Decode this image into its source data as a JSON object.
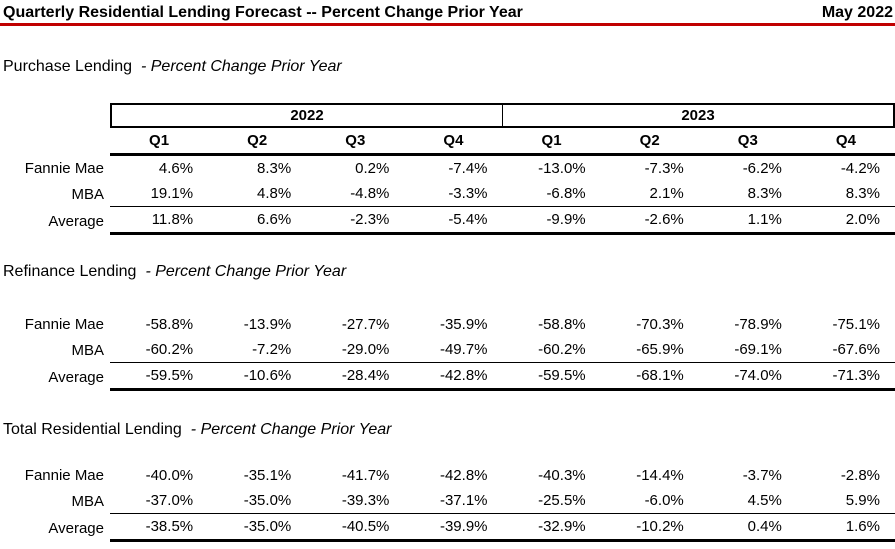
{
  "header": {
    "title": "Quarterly Residential Lending Forecast -- Percent Change Prior Year",
    "date": "May 2022"
  },
  "colors": {
    "accent": "#C00000",
    "text": "#000000",
    "background": "#FFFFFF"
  },
  "table": {
    "year_groups": [
      "2022",
      "2023"
    ],
    "quarter_headers": [
      "Q1",
      "Q2",
      "Q3",
      "Q4",
      "Q1",
      "Q2",
      "Q3",
      "Q4"
    ]
  },
  "sections": [
    {
      "name": "Purchase Lending",
      "subtitle": "- Percent Change Prior Year",
      "rows": [
        {
          "label": "Fannie Mae",
          "values": [
            "4.6%",
            "8.3%",
            "0.2%",
            "-7.4%",
            "-13.0%",
            "-7.3%",
            "-6.2%",
            "-4.2%"
          ]
        },
        {
          "label": "MBA",
          "values": [
            "19.1%",
            "4.8%",
            "-4.8%",
            "-3.3%",
            "-6.8%",
            "2.1%",
            "8.3%",
            "8.3%"
          ]
        },
        {
          "label": "Average",
          "values": [
            "11.8%",
            "6.6%",
            "-2.3%",
            "-5.4%",
            "-9.9%",
            "-2.6%",
            "1.1%",
            "2.0%"
          ]
        }
      ]
    },
    {
      "name": "Refinance Lending",
      "subtitle": "- Percent Change Prior Year",
      "rows": [
        {
          "label": "Fannie Mae",
          "values": [
            "-58.8%",
            "-13.9%",
            "-27.7%",
            "-35.9%",
            "-58.8%",
            "-70.3%",
            "-78.9%",
            "-75.1%"
          ]
        },
        {
          "label": "MBA",
          "values": [
            "-60.2%",
            "-7.2%",
            "-29.0%",
            "-49.7%",
            "-60.2%",
            "-65.9%",
            "-69.1%",
            "-67.6%"
          ]
        },
        {
          "label": "Average",
          "values": [
            "-59.5%",
            "-10.6%",
            "-28.4%",
            "-42.8%",
            "-59.5%",
            "-68.1%",
            "-74.0%",
            "-71.3%"
          ]
        }
      ]
    },
    {
      "name": "Total Residential Lending",
      "subtitle": "- Percent Change Prior Year",
      "rows": [
        {
          "label": "Fannie Mae",
          "values": [
            "-40.0%",
            "-35.1%",
            "-41.7%",
            "-42.8%",
            "-40.3%",
            "-14.4%",
            "-3.7%",
            "-2.8%"
          ]
        },
        {
          "label": "MBA",
          "values": [
            "-37.0%",
            "-35.0%",
            "-39.3%",
            "-37.1%",
            "-25.5%",
            "-6.0%",
            "4.5%",
            "5.9%"
          ]
        },
        {
          "label": "Average",
          "values": [
            "-38.5%",
            "-35.0%",
            "-40.5%",
            "-39.9%",
            "-32.9%",
            "-10.2%",
            "0.4%",
            "1.6%"
          ]
        }
      ]
    }
  ]
}
